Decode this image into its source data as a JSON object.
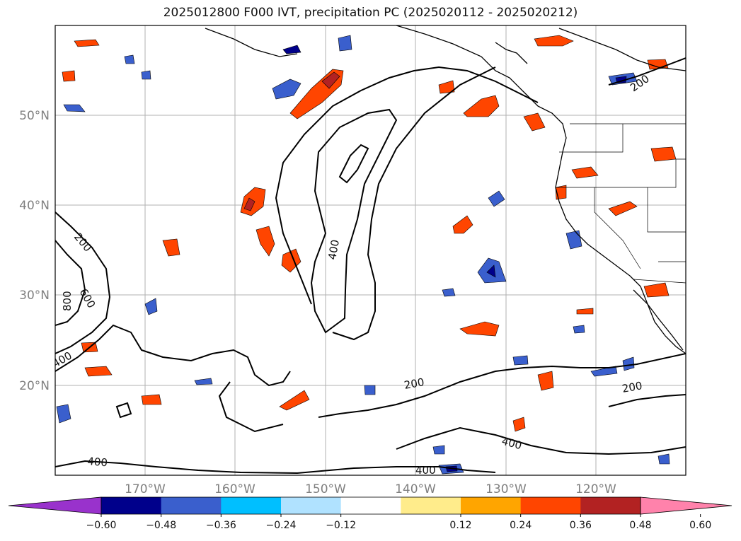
{
  "title": "2025012800 F000 IVT, precipitation PC (2025020112 - 2025020212)",
  "map": {
    "lat_labels": [
      "50°N",
      "40°N",
      "30°N",
      "20°N"
    ],
    "lon_labels": [
      "170°W",
      "160°W",
      "150°W",
      "140°W",
      "130°W",
      "120°W"
    ],
    "ivt_contour_labels": [
      "200",
      "200",
      "200",
      "200",
      "400",
      "400",
      "400",
      "400",
      "400",
      "600",
      "800"
    ]
  },
  "colorbar": {
    "ticks": [
      "−0.60",
      "−0.48",
      "−0.36",
      "−0.24",
      "−0.12",
      "0.12",
      "0.24",
      "0.36",
      "0.48",
      "0.60"
    ],
    "colors": [
      "#9932cc",
      "#00008b",
      "#3a5fcd",
      "#00bfff",
      "#b0e2ff",
      "#ffffff",
      "#ffec8b",
      "#ffa500",
      "#ff4500",
      "#b22222",
      "#ff82ab"
    ],
    "under_color": "#9932cc",
    "over_color": "#ff82ab"
  }
}
